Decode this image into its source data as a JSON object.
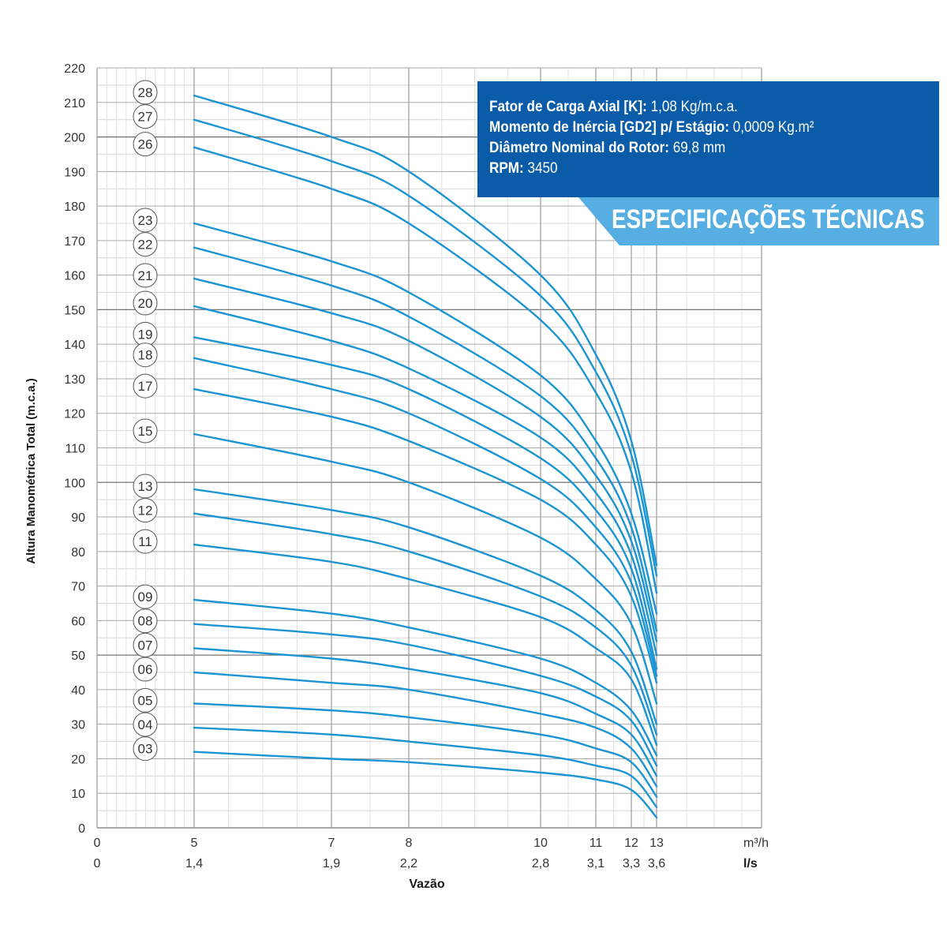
{
  "chart_data": {
    "type": "line",
    "title": "",
    "ylabel": "Altura Manométrica Total (m.c.a.)",
    "xlabel": "Vazão",
    "ylim": [
      0,
      220
    ],
    "yticks": [
      0,
      10,
      20,
      30,
      40,
      50,
      60,
      70,
      80,
      90,
      100,
      110,
      120,
      130,
      140,
      150,
      160,
      170,
      180,
      190,
      200,
      210,
      220
    ],
    "x_unit_primary": "m³/h",
    "x_unit_secondary": "l/s",
    "xticks_primary": [
      "0",
      "5",
      "7",
      "8",
      "10",
      "11",
      "12",
      "13"
    ],
    "xticks_secondary": [
      "0",
      "1,4",
      "1,9",
      "2,2",
      "2,8",
      "3,1",
      "3,3",
      "3,6"
    ],
    "grid": true,
    "line_color": "#1a94d2",
    "series": [
      {
        "name": "28",
        "values": [
          [
            5,
            212
          ],
          [
            7,
            200
          ],
          [
            8,
            190
          ],
          [
            10,
            160
          ],
          [
            11,
            137
          ],
          [
            12,
            112
          ],
          [
            13,
            76
          ]
        ]
      },
      {
        "name": "27",
        "values": [
          [
            5,
            205
          ],
          [
            7,
            193
          ],
          [
            8,
            183
          ],
          [
            10,
            154
          ],
          [
            11,
            132
          ],
          [
            12,
            108
          ],
          [
            13,
            73
          ]
        ]
      },
      {
        "name": "26",
        "values": [
          [
            5,
            197
          ],
          [
            7,
            185
          ],
          [
            8,
            175
          ],
          [
            10,
            147
          ],
          [
            11,
            126
          ],
          [
            12,
            103
          ],
          [
            13,
            68
          ]
        ]
      },
      {
        "name": "23",
        "values": [
          [
            5,
            175
          ],
          [
            7,
            164
          ],
          [
            8,
            155
          ],
          [
            10,
            131
          ],
          [
            11,
            112
          ],
          [
            12,
            91
          ],
          [
            13,
            62
          ]
        ]
      },
      {
        "name": "22",
        "values": [
          [
            5,
            168
          ],
          [
            7,
            157
          ],
          [
            8,
            148
          ],
          [
            10,
            125
          ],
          [
            11,
            107
          ],
          [
            12,
            87
          ],
          [
            13,
            57
          ]
        ]
      },
      {
        "name": "21",
        "values": [
          [
            5,
            159
          ],
          [
            7,
            149
          ],
          [
            8,
            141
          ],
          [
            10,
            119
          ],
          [
            11,
            102
          ],
          [
            12,
            83
          ],
          [
            13,
            54
          ]
        ]
      },
      {
        "name": "20",
        "values": [
          [
            5,
            151
          ],
          [
            7,
            141
          ],
          [
            8,
            133
          ],
          [
            10,
            113
          ],
          [
            11,
            97
          ],
          [
            12,
            79
          ],
          [
            13,
            50
          ]
        ]
      },
      {
        "name": "19",
        "values": [
          [
            5,
            142
          ],
          [
            7,
            134
          ],
          [
            8,
            127
          ],
          [
            10,
            107
          ],
          [
            11,
            92
          ],
          [
            12,
            75
          ],
          [
            13,
            46
          ]
        ]
      },
      {
        "name": "18",
        "values": [
          [
            5,
            136
          ],
          [
            7,
            127
          ],
          [
            8,
            120
          ],
          [
            10,
            101
          ],
          [
            11,
            87
          ],
          [
            12,
            71
          ],
          [
            13,
            44
          ]
        ]
      },
      {
        "name": "17",
        "values": [
          [
            5,
            127
          ],
          [
            7,
            119
          ],
          [
            8,
            112
          ],
          [
            10,
            95
          ],
          [
            11,
            82
          ],
          [
            12,
            67
          ],
          [
            13,
            42
          ]
        ]
      },
      {
        "name": "15",
        "values": [
          [
            5,
            114
          ],
          [
            7,
            106
          ],
          [
            8,
            100
          ],
          [
            10,
            84
          ],
          [
            11,
            72
          ],
          [
            12,
            59
          ],
          [
            13,
            36
          ]
        ]
      },
      {
        "name": "13",
        "values": [
          [
            5,
            98
          ],
          [
            7,
            92
          ],
          [
            8,
            87
          ],
          [
            10,
            73
          ],
          [
            11,
            63
          ],
          [
            12,
            51
          ],
          [
            13,
            30
          ]
        ]
      },
      {
        "name": "12",
        "values": [
          [
            5,
            91
          ],
          [
            7,
            85
          ],
          [
            8,
            80
          ],
          [
            10,
            67
          ],
          [
            11,
            58
          ],
          [
            12,
            47
          ],
          [
            13,
            27
          ]
        ]
      },
      {
        "name": "11",
        "values": [
          [
            5,
            82
          ],
          [
            7,
            77
          ],
          [
            8,
            72
          ],
          [
            10,
            61
          ],
          [
            11,
            52
          ],
          [
            12,
            43
          ],
          [
            13,
            24
          ]
        ]
      },
      {
        "name": "09",
        "values": [
          [
            5,
            66
          ],
          [
            7,
            62
          ],
          [
            8,
            58
          ],
          [
            10,
            49
          ],
          [
            11,
            42
          ],
          [
            12,
            34
          ],
          [
            13,
            21
          ]
        ]
      },
      {
        "name": "08",
        "values": [
          [
            5,
            59
          ],
          [
            7,
            56
          ],
          [
            8,
            53
          ],
          [
            10,
            44
          ],
          [
            11,
            38
          ],
          [
            12,
            31
          ],
          [
            13,
            18
          ]
        ]
      },
      {
        "name": "07",
        "values": [
          [
            5,
            52
          ],
          [
            7,
            49
          ],
          [
            8,
            46
          ],
          [
            10,
            39
          ],
          [
            11,
            33
          ],
          [
            12,
            27
          ],
          [
            13,
            15
          ]
        ]
      },
      {
        "name": "06",
        "values": [
          [
            5,
            45
          ],
          [
            7,
            42
          ],
          [
            8,
            40
          ],
          [
            10,
            33
          ],
          [
            11,
            29
          ],
          [
            12,
            23
          ],
          [
            13,
            12
          ]
        ]
      },
      {
        "name": "05",
        "values": [
          [
            5,
            36
          ],
          [
            7,
            34
          ],
          [
            8,
            32
          ],
          [
            10,
            27
          ],
          [
            11,
            23
          ],
          [
            12,
            19
          ],
          [
            13,
            9
          ]
        ]
      },
      {
        "name": "04",
        "values": [
          [
            5,
            29
          ],
          [
            7,
            27
          ],
          [
            8,
            25
          ],
          [
            10,
            21
          ],
          [
            11,
            18
          ],
          [
            12,
            15
          ],
          [
            13,
            6
          ]
        ]
      },
      {
        "name": "03",
        "values": [
          [
            5,
            22
          ],
          [
            7,
            20
          ],
          [
            8,
            19
          ],
          [
            10,
            16
          ],
          [
            11,
            14
          ],
          [
            12,
            11
          ],
          [
            13,
            3
          ]
        ]
      }
    ]
  },
  "specs": {
    "fator_label": "Fator de Carga Axial [K]:",
    "fator_value": " 1,08 Kg/m.c.a.",
    "momento_label": "Momento de Inércia [GD2] p/ Estágio:",
    "momento_value": " 0,0009 Kg.m²",
    "diametro_label": "Diâmetro Nominal do Rotor:",
    "diametro_value": " 69,8 mm",
    "rpm_label": "RPM:",
    "rpm_value": " 3450",
    "banner": "ESPECIFICAÇÕES TÉCNICAS",
    "box_color": "#0a5ba8",
    "banner_color": "#57aee3"
  }
}
